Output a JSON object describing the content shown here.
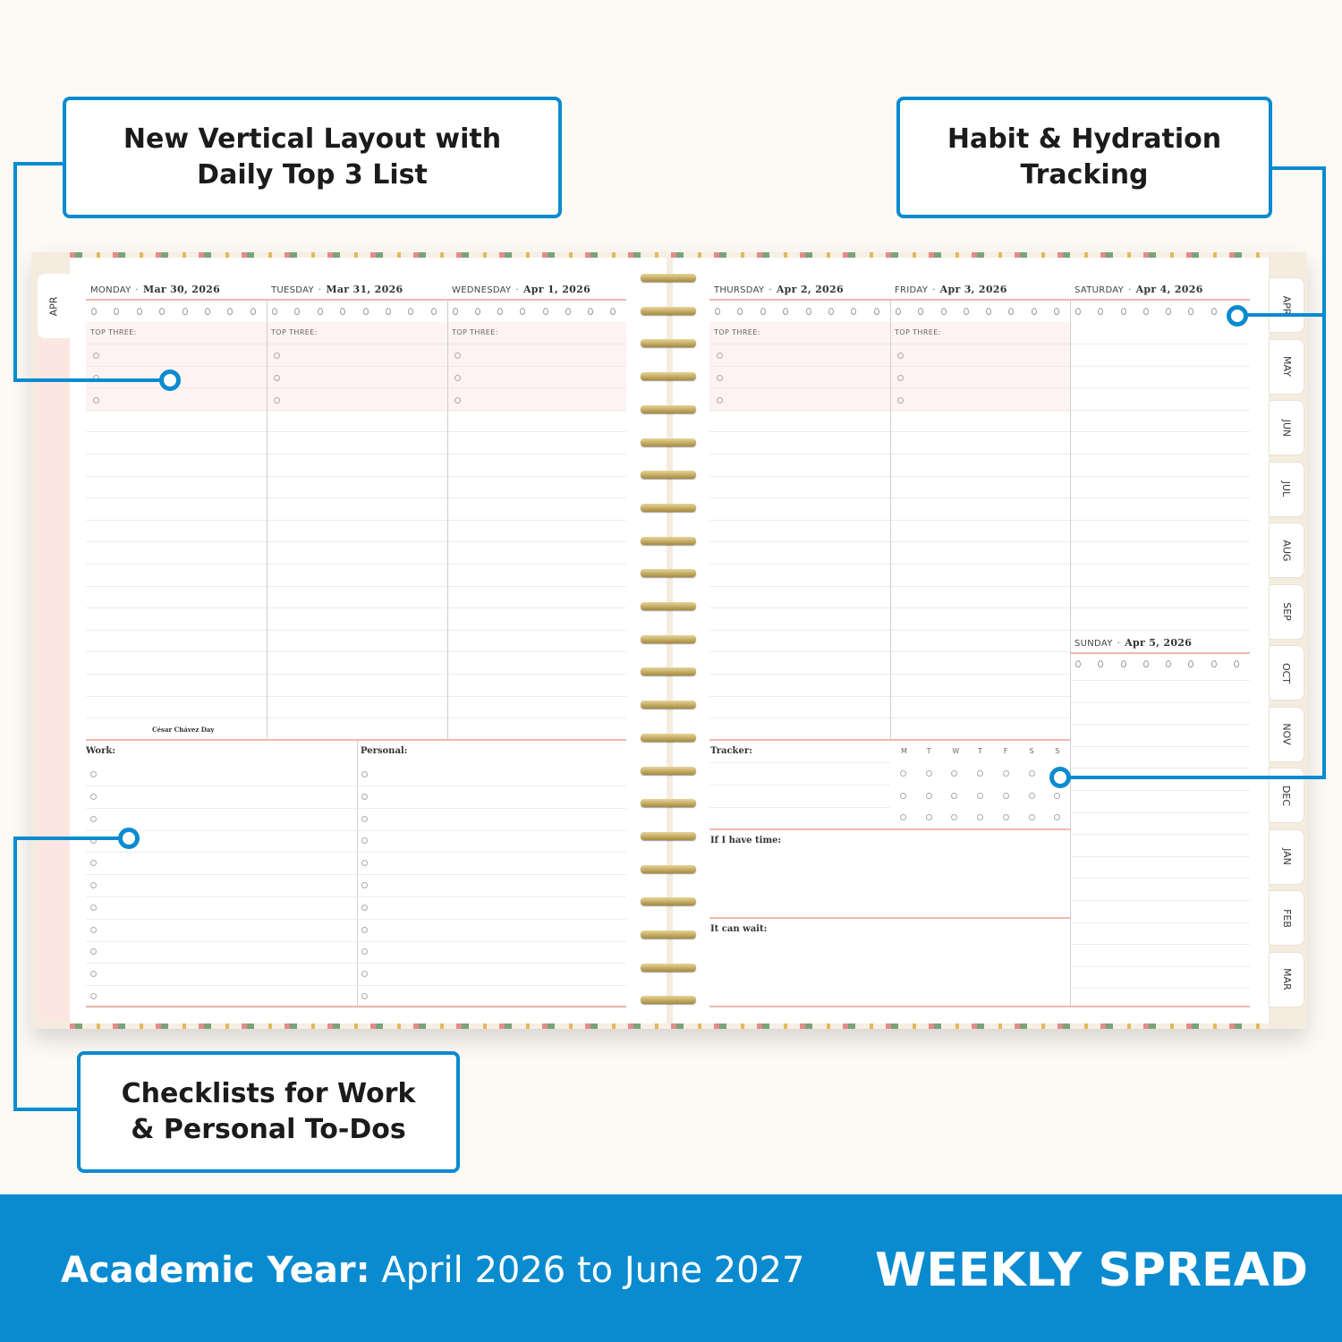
{
  "callouts": {
    "vertical": [
      "New Vertical Layout with",
      "Daily Top 3 List"
    ],
    "habit": [
      "Habit & Hydration",
      "Tracking"
    ],
    "checklists": [
      "Checklists for Work",
      "& Personal To-Dos"
    ]
  },
  "left_page": {
    "tab": "APR",
    "days": [
      {
        "day": "MONDAY",
        "date": "Mar 30, 2026",
        "note": "César Chávez Day"
      },
      {
        "day": "TUESDAY",
        "date": "Mar 31, 2026"
      },
      {
        "day": "WEDNESDAY",
        "date": "Apr 1, 2026"
      }
    ],
    "top_three_label": "TOP THREE:",
    "work_label": "Work:",
    "personal_label": "Personal:"
  },
  "right_page": {
    "days": [
      {
        "day": "THURSDAY",
        "date": "Apr 2, 2026"
      },
      {
        "day": "FRIDAY",
        "date": "Apr 3, 2026"
      },
      {
        "day": "SATURDAY",
        "date": "Apr 4, 2026"
      },
      {
        "day": "SUNDAY",
        "date": "Apr 5, 2026"
      }
    ],
    "top_three_label": "TOP THREE:",
    "tracker_label": "Tracker:",
    "tracker_days": [
      "M",
      "T",
      "W",
      "T",
      "F",
      "S",
      "S"
    ],
    "if_time_label": "If I have time:",
    "can_wait_label": "It can wait:",
    "month_tabs": [
      "APR",
      "MAY",
      "JUN",
      "JUL",
      "AUG",
      "SEP",
      "OCT",
      "NOV",
      "DEC",
      "JAN",
      "FEB",
      "MAR"
    ]
  },
  "separator": "·",
  "footer": {
    "academic_label": "Academic Year:",
    "academic_range": "April 2026 to June 2027",
    "title": "WEEKLY SPREAD"
  },
  "colors": {
    "accent": "#0a8bd0",
    "rule": "#f2b6b0",
    "band": "#fdf3f2"
  }
}
